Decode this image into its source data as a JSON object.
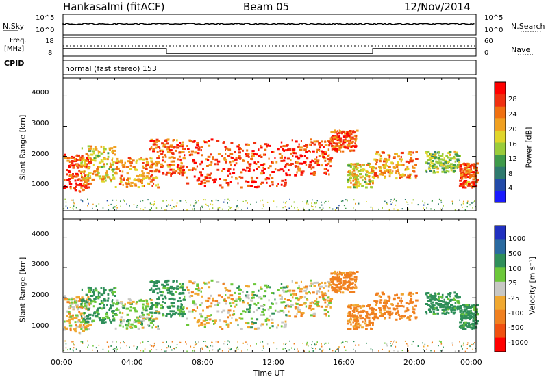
{
  "header": {
    "station": "Hankasalmi (fitACF)",
    "beam": "Beam 05",
    "date": "12/Nov/2014"
  },
  "noise_panel": {
    "left_label": "N.Sky",
    "right_label": "N.Search",
    "left_top": "10^5",
    "left_bottom": "10^0",
    "right_top": "10^5",
    "right_bottom": "10^0"
  },
  "freq_panel": {
    "left_label_1": "Freq.",
    "left_label_2": "[MHz]",
    "left_top": "18",
    "left_bottom": "8",
    "right_label": "Nave",
    "right_top": "60",
    "right_bottom": "0",
    "cpid_label": "CPID"
  },
  "cpid_panel": {
    "text": "normal (fast stereo) 153"
  },
  "power_panel": {
    "ylabel": "Slant Range [km]",
    "yticks": [
      "1000",
      "2000",
      "3000",
      "4000"
    ],
    "colorbar_label": "Power [dB]",
    "colorbar_ticks": [
      "4",
      "8",
      "12",
      "16",
      "20",
      "24",
      "28"
    ],
    "colors": [
      "#1a1aff",
      "#234ba8",
      "#2f7a6e",
      "#3f9a4a",
      "#9acc3a",
      "#e0d52a",
      "#f0a020",
      "#f07010",
      "#f03010",
      "#ff0000"
    ]
  },
  "velocity_panel": {
    "ylabel": "Slant Range [km]",
    "yticks": [
      "1000",
      "2000",
      "3000",
      "4000"
    ],
    "colorbar_label": "Velocity [m s⁻¹]",
    "colorbar_ticks": [
      "1000",
      "500",
      "100",
      "25",
      "-25",
      "-100",
      "-500",
      "-1000"
    ],
    "colors": [
      "#2030c0",
      "#2a6aa0",
      "#2f8f5a",
      "#6cc83a",
      "#c8c8c4",
      "#f0a830",
      "#f08020",
      "#f05010",
      "#ff0000"
    ]
  },
  "x_axis": {
    "label": "Time UT",
    "ticks": [
      "00:00",
      "04:00",
      "08:00",
      "12:00",
      "16:00",
      "20:00",
      "00:00"
    ]
  },
  "chart_data": {
    "type": "heatmap",
    "title": "Hankasalmi (fitACF)",
    "subtitle": "Beam 05",
    "date": "12/Nov/2014",
    "x_range_hours": [
      0,
      24
    ],
    "y_range_km": [
      200,
      4600
    ],
    "xlabel": "Time UT",
    "ylabel": "Slant Range [km]",
    "power_range_db": [
      0,
      32
    ],
    "velocity_range_ms": [
      -1500,
      1500
    ],
    "scatter_regions": [
      {
        "t0": 0.0,
        "t1": 1.5,
        "r0": 850,
        "r1": 2100,
        "power_db": 26,
        "velocity_ms": -25
      },
      {
        "t0": 1.0,
        "t1": 3.0,
        "r0": 1200,
        "r1": 2400,
        "power_db": 18,
        "velocity_ms": 100
      },
      {
        "t0": 3.0,
        "t1": 5.5,
        "r0": 1000,
        "r1": 2000,
        "power_db": 22,
        "velocity_ms": 25
      },
      {
        "t0": 5.0,
        "t1": 7.0,
        "r0": 1400,
        "r1": 2600,
        "power_db": 24,
        "velocity_ms": 100
      },
      {
        "t0": 7.0,
        "t1": 10.0,
        "r0": 1000,
        "r1": 2600,
        "power_db": 27,
        "velocity_ms": -25
      },
      {
        "t0": 10.0,
        "t1": 13.0,
        "r0": 1000,
        "r1": 2500,
        "power_db": 28,
        "velocity_ms": 25
      },
      {
        "t0": 13.0,
        "t1": 15.5,
        "r0": 1400,
        "r1": 2600,
        "power_db": 27,
        "velocity_ms": -25
      },
      {
        "t0": 15.5,
        "t1": 17.0,
        "r0": 2200,
        "r1": 2900,
        "power_db": 26,
        "velocity_ms": -100
      },
      {
        "t0": 16.5,
        "t1": 18.0,
        "r0": 1000,
        "r1": 1800,
        "power_db": 18,
        "velocity_ms": -100
      },
      {
        "t0": 18.0,
        "t1": 20.5,
        "r0": 1300,
        "r1": 2200,
        "power_db": 22,
        "velocity_ms": -100
      },
      {
        "t0": 21.0,
        "t1": 23.0,
        "r0": 1500,
        "r1": 2200,
        "power_db": 14,
        "velocity_ms": 100
      },
      {
        "t0": 23.0,
        "t1": 24.0,
        "r0": 1000,
        "r1": 1800,
        "power_db": 25,
        "velocity_ms": 100
      }
    ],
    "freq_mhz": 12,
    "nave": [
      {
        "t0": 0,
        "t1": 6,
        "value": 10
      },
      {
        "t0": 6,
        "t1": 18,
        "value": 0
      },
      {
        "t0": 18,
        "t1": 24,
        "value": 10
      }
    ]
  }
}
